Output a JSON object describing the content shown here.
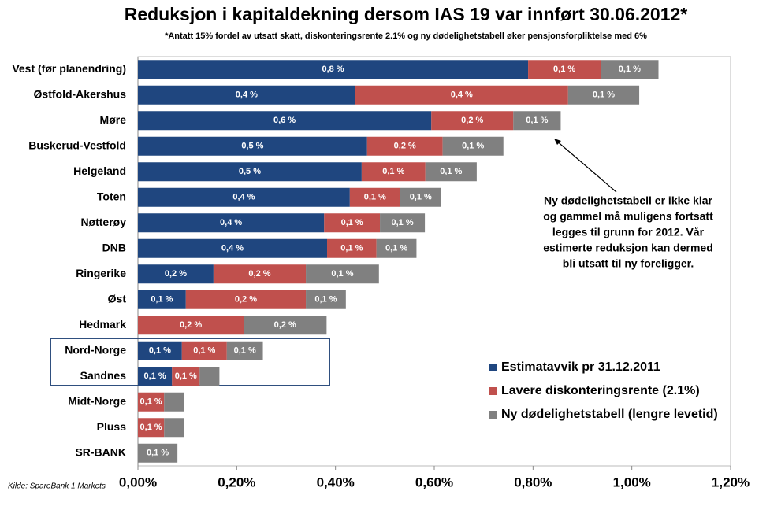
{
  "chart_data": {
    "type": "stacked-barh",
    "title": "Reduksjon i kapitaldekning dersom IAS 19 var innført 30.06.2012*",
    "subtitle": "*Antatt 15% fordel av utsatt skatt, diskonteringsrente 2.1% og ny dødelighetstabell øker pensjonsforpliktelse med 6%",
    "source": "Kilde: SpareBank 1 Markets",
    "annotation": [
      "Ny dødelighetstabell er ikke klar",
      "og gammel må muligens fortsatt",
      "legges til grunn for 2012. Vår",
      "estimerte reduksjon kan dermed",
      "bli utsatt til ny foreligger."
    ],
    "categories": [
      "Vest (før planendring)",
      "Østfold-Akershus",
      "Møre",
      "Buskerud-Vestfold",
      "Helgeland",
      "Toten",
      "Nøtterøy",
      "DNB",
      "Ringerike",
      "Øst",
      "Hedmark",
      "Nord-Norge",
      "Sandnes",
      "Midt-Norge",
      "Pluss",
      "SR-BANK"
    ],
    "series": [
      {
        "name": "Estimatavvik pr 31.12.2011",
        "color": "#1f467f",
        "values": [
          0.79,
          0.44,
          0.594,
          0.464,
          0.453,
          0.429,
          0.377,
          0.383,
          0.153,
          0.097,
          0,
          0.089,
          0.069,
          0,
          0,
          0
        ],
        "value_labels": [
          "0,8 %",
          "0,4 %",
          "0,6 %",
          "0,5 %",
          "0,5 %",
          "0,4 %",
          "0,4 %",
          "0,4 %",
          "0,2 %",
          "0,1 %",
          null,
          "0,1 %",
          "0,1 %",
          null,
          null,
          null
        ]
      },
      {
        "name": "Lavere diskonteringsrente (2.1%)",
        "color": "#c0504d",
        "values": [
          0.147,
          0.431,
          0.166,
          0.153,
          0.129,
          0.102,
          0.113,
          0.1,
          0.187,
          0.243,
          0.214,
          0.091,
          0.056,
          0.053,
          0.053,
          0
        ],
        "value_labels": [
          "0,1 %",
          "0,4 %",
          "0,2 %",
          "0,2 %",
          "0,1 %",
          "0,1 %",
          "0,1 %",
          "0,1 %",
          "0,2 %",
          "0,2 %",
          "0,2 %",
          "0,1 %",
          "0,1 %",
          "0,1 %",
          "0,1 %",
          null
        ]
      },
      {
        "name": "Ny dødelighetstabell (lengre levetid)",
        "color": "#808080",
        "values": [
          0.117,
          0.144,
          0.096,
          0.123,
          0.104,
          0.083,
          0.091,
          0.081,
          0.148,
          0.081,
          0.168,
          0.073,
          0.04,
          0.041,
          0.04,
          0.08
        ],
        "value_labels": [
          "0,1 %",
          "0,1 %",
          "0,1 %",
          "0,1 %",
          "0,1 %",
          "0,1 %",
          "0,1 %",
          "0,1 %",
          "0,1 %",
          "0,1 %",
          "0,2 %",
          "0,1 %",
          null,
          null,
          null,
          "0,1 %"
        ]
      }
    ],
    "xlim": [
      0,
      1.2
    ],
    "xticks": [
      {
        "value": 0,
        "label": "0,00%"
      },
      {
        "value": 0.2,
        "label": "0,20%"
      },
      {
        "value": 0.4,
        "label": "0,40%"
      },
      {
        "value": 0.6,
        "label": "0,60%"
      },
      {
        "value": 0.8,
        "label": "0,80%"
      },
      {
        "value": 1.0,
        "label": "1,00%"
      },
      {
        "value": 1.2,
        "label": "1,20%"
      }
    ],
    "legend": "lower right",
    "grid": false
  }
}
